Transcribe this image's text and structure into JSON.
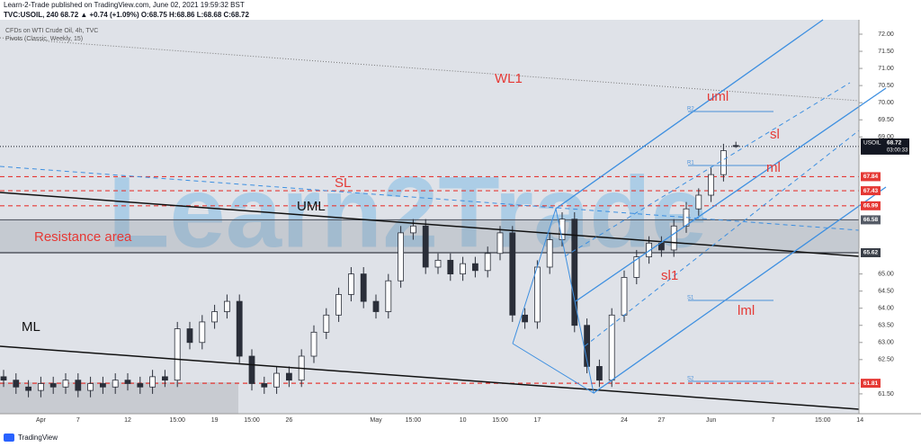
{
  "header": {
    "publisher": "Learn-2-Trade published on TradingView.com, June 02, 2021 19:59:32 BST",
    "symbol_line": "TVC:USOIL, 240  68.72 ▲ +0.74 (+1.09%) O:68.75 H:68.86 L:68.68 C:68.72"
  },
  "chart_data": {
    "type": "candlestick",
    "title": "CFDs on WTI Crude Oil, 4h, TVC",
    "subtitle": "Pivots (Classic, Weekly, 15)",
    "watermark": "Learn2Trade",
    "categories": [
      null,
      null,
      null,
      "Apr",
      null,
      null,
      "7",
      null,
      null,
      null,
      "12",
      null,
      null,
      null,
      "15:00",
      null,
      null,
      "19",
      null,
      null,
      "15:00",
      null,
      null,
      "26",
      null,
      null,
      null,
      null,
      null,
      null,
      "May",
      null,
      null,
      "15:00",
      null,
      null,
      null,
      "10",
      null,
      null,
      "15:00",
      null,
      null,
      "17",
      null,
      null,
      null,
      null,
      null,
      null,
      "24",
      null,
      null,
      "27",
      null,
      null,
      null,
      "Jun",
      null,
      null,
      null,
      null,
      "7",
      null,
      null,
      null,
      "15:00",
      null,
      null,
      "14"
    ],
    "open": [
      62.0,
      61.9,
      61.7,
      61.6,
      61.8,
      61.7,
      61.9,
      61.6,
      61.8,
      61.7,
      61.9,
      61.8,
      61.7,
      62.0,
      61.9,
      63.4,
      63.0,
      63.6,
      63.9,
      64.2,
      62.6,
      61.8,
      61.7,
      62.1,
      61.9,
      62.6,
      63.3,
      63.8,
      64.4,
      65.0,
      64.2,
      63.9,
      64.8,
      66.2,
      66.4,
      65.2,
      65.4,
      65.0,
      65.3,
      65.1,
      65.6,
      66.2,
      63.8,
      63.6,
      65.2,
      66.0,
      66.6,
      63.5,
      62.3,
      61.9,
      63.8,
      64.9,
      65.5,
      65.9,
      65.7,
      66.4,
      66.9,
      67.3,
      67.9,
      68.75,
      null,
      null,
      null,
      null,
      null,
      null,
      null,
      null,
      null,
      null
    ],
    "high": [
      62.2,
      62.1,
      61.9,
      62.0,
      62.0,
      62.1,
      62.1,
      62.0,
      62.0,
      62.1,
      62.1,
      62.0,
      62.2,
      62.2,
      63.6,
      63.6,
      63.8,
      64.1,
      64.4,
      64.4,
      62.8,
      62.0,
      62.3,
      62.3,
      62.8,
      63.5,
      64.0,
      64.6,
      65.2,
      65.2,
      64.4,
      65.0,
      66.4,
      66.6,
      66.6,
      65.6,
      65.6,
      65.5,
      65.5,
      65.8,
      66.4,
      66.4,
      64.0,
      65.4,
      66.2,
      66.8,
      66.8,
      63.7,
      62.5,
      64.0,
      65.1,
      65.7,
      66.1,
      66.1,
      66.6,
      67.1,
      67.5,
      68.1,
      68.8,
      68.86,
      null,
      null,
      null,
      null,
      null,
      null,
      null,
      null,
      null,
      null
    ],
    "low": [
      61.7,
      61.5,
      61.4,
      61.4,
      61.5,
      61.5,
      61.4,
      61.4,
      61.5,
      61.5,
      61.6,
      61.5,
      61.5,
      61.7,
      61.7,
      62.8,
      62.8,
      63.4,
      63.7,
      62.4,
      61.6,
      61.5,
      61.5,
      61.7,
      61.7,
      62.4,
      63.1,
      63.6,
      64.2,
      64.0,
      63.7,
      63.7,
      64.6,
      66.0,
      65.0,
      65.0,
      64.8,
      64.8,
      64.9,
      64.9,
      65.4,
      63.6,
      63.4,
      63.4,
      65.0,
      65.8,
      63.3,
      62.1,
      61.7,
      61.7,
      63.6,
      64.7,
      65.3,
      65.5,
      65.5,
      66.2,
      66.7,
      67.1,
      67.7,
      68.68,
      null,
      null,
      null,
      null,
      null,
      null,
      null,
      null,
      null,
      null
    ],
    "close": [
      61.9,
      61.7,
      61.6,
      61.8,
      61.7,
      61.9,
      61.6,
      61.8,
      61.7,
      61.9,
      61.8,
      61.7,
      62.0,
      61.9,
      63.4,
      63.0,
      63.6,
      63.9,
      64.2,
      62.6,
      61.8,
      61.7,
      62.1,
      61.9,
      62.6,
      63.3,
      63.8,
      64.4,
      65.0,
      64.2,
      63.9,
      64.8,
      66.2,
      66.4,
      65.2,
      65.4,
      65.0,
      65.3,
      65.1,
      65.6,
      66.2,
      63.8,
      63.6,
      65.2,
      66.0,
      66.6,
      63.5,
      62.3,
      61.9,
      63.8,
      64.9,
      65.5,
      65.9,
      65.7,
      66.4,
      66.9,
      67.3,
      67.9,
      68.6,
      68.72,
      null,
      null,
      null,
      null,
      null,
      null,
      null,
      null,
      null,
      null
    ],
    "ylim": [
      60.92,
      72.42
    ],
    "yticks": [
      {
        "value": 72,
        "label": "72.00"
      },
      {
        "value": 71.5,
        "label": "71.50"
      },
      {
        "value": 71,
        "label": "71.00"
      },
      {
        "value": 70.5,
        "label": "70.50"
      },
      {
        "value": 70,
        "label": "70.00"
      },
      {
        "value": 69.5,
        "label": "69.50"
      },
      {
        "value": 69,
        "label": "69.00"
      },
      {
        "value": 65,
        "label": "65.00"
      },
      {
        "value": 64.5,
        "label": "64.50"
      },
      {
        "value": 64,
        "label": "64.00"
      },
      {
        "value": 63.5,
        "label": "63.50"
      },
      {
        "value": 63,
        "label": "63.00"
      },
      {
        "value": 62.5,
        "label": "62.50"
      },
      {
        "value": 61.5,
        "label": "61.50"
      }
    ],
    "last": {
      "symbol": "USOIL",
      "value": 68.72,
      "countdown": "03:00:33",
      "color": "#131722"
    },
    "levels": [
      {
        "value": 67.84,
        "color": "#e53935",
        "dash": true
      },
      {
        "value": 67.43,
        "color": "#e53935",
        "dash": true
      },
      {
        "value": 66.99,
        "color": "#e53935",
        "dash": true
      },
      {
        "value": 66.58,
        "color": "#555b66",
        "dash": false
      },
      {
        "value": 65.62,
        "color": "#3a3f48",
        "dash": false
      },
      {
        "value": 61.81,
        "color": "#e53935",
        "dash": true
      }
    ],
    "annotations": [
      "WL1",
      "uml",
      "sl",
      "ml",
      "SL",
      "UML",
      "Resistance area",
      "sl1",
      "lml",
      "ML",
      "R2",
      "R1",
      "S1",
      "S2"
    ]
  },
  "footer": "TradingView"
}
